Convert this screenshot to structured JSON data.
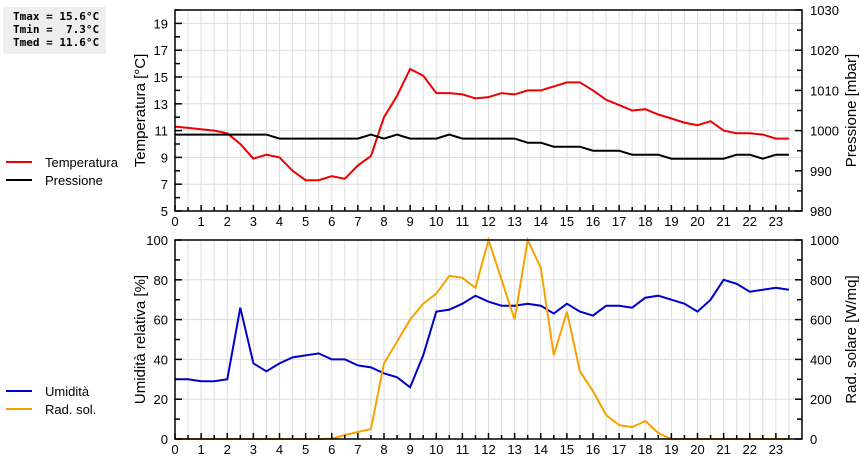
{
  "stats": {
    "tmax": "Tmax = 15.6°C",
    "tmin": "Tmin =  7.3°C",
    "tmed": "Tmed = 11.6°C"
  },
  "legend_top": [
    {
      "label": "Temperatura",
      "color": "#ee0000"
    },
    {
      "label": "Pressione",
      "color": "#000000"
    }
  ],
  "legend_bottom": [
    {
      "label": "Umidità",
      "color": "#0000cc"
    },
    {
      "label": "Rad. sol.",
      "color": "#f5a300"
    }
  ],
  "chart_data": [
    {
      "type": "line",
      "title": "",
      "xlabel": "",
      "ylabel": "Temperatura [°C]",
      "y2label": "Pressione [mbar]",
      "xlim": [
        0,
        24
      ],
      "ylim": [
        5,
        20
      ],
      "y2lim": [
        980,
        1030
      ],
      "x_ticks": [
        "0",
        "1",
        "2",
        "3",
        "4",
        "5",
        "6",
        "7",
        "8",
        "9",
        "10",
        "11",
        "12",
        "13",
        "14",
        "15",
        "16",
        "17",
        "18",
        "19",
        "20",
        "21",
        "22",
        "23"
      ],
      "y_ticks": [
        "5",
        "7",
        "9",
        "11",
        "13",
        "15",
        "17",
        "19"
      ],
      "y2_ticks": [
        "980",
        "990",
        "1000",
        "1010",
        "1020",
        "1030"
      ],
      "grid": true,
      "legend_position": "left",
      "x": [
        0,
        0.5,
        1,
        1.5,
        2,
        2.5,
        3,
        3.5,
        4,
        4.5,
        5,
        5.5,
        6,
        6.5,
        7,
        7.5,
        8,
        8.5,
        9,
        9.5,
        10,
        10.5,
        11,
        11.5,
        12,
        12.5,
        13,
        13.5,
        14,
        14.5,
        15,
        15.5,
        16,
        16.5,
        17,
        17.5,
        18,
        18.5,
        19,
        19.5,
        20,
        20.5,
        21,
        21.5,
        22,
        22.5,
        23,
        23.5
      ],
      "series": [
        {
          "name": "Temperatura",
          "axis": "left",
          "color": "#ee0000",
          "values": [
            11.3,
            11.2,
            11.1,
            11.0,
            10.8,
            10.0,
            8.9,
            9.2,
            9.0,
            8.0,
            7.3,
            7.3,
            7.6,
            7.4,
            8.4,
            9.1,
            12.0,
            13.6,
            15.6,
            15.1,
            13.8,
            13.8,
            13.7,
            13.4,
            13.5,
            13.8,
            13.7,
            14.0,
            14.0,
            14.3,
            14.6,
            14.6,
            14.0,
            13.3,
            12.9,
            12.5,
            12.6,
            12.2,
            11.9,
            11.6,
            11.4,
            11.7,
            11.0,
            10.8,
            10.8,
            10.7,
            10.4,
            10.4
          ]
        },
        {
          "name": "Pressione",
          "axis": "right",
          "color": "#000000",
          "values": [
            999,
            999,
            999,
            999,
            999,
            999,
            999,
            999,
            998,
            998,
            998,
            998,
            998,
            998,
            998,
            999,
            998,
            999,
            998,
            998,
            998,
            999,
            998,
            998,
            998,
            998,
            998,
            997,
            997,
            996,
            996,
            996,
            995,
            995,
            995,
            994,
            994,
            994,
            993,
            993,
            993,
            993,
            993,
            994,
            994,
            993,
            994,
            994
          ]
        }
      ]
    },
    {
      "type": "line",
      "title": "",
      "xlabel": "",
      "ylabel": "Umidità relativa [%]",
      "y2label": "Rad. solare [W/mq]",
      "xlim": [
        0,
        24
      ],
      "ylim": [
        0,
        100
      ],
      "y2lim": [
        0,
        1000
      ],
      "x_ticks": [
        "0",
        "1",
        "2",
        "3",
        "4",
        "5",
        "6",
        "7",
        "8",
        "9",
        "10",
        "11",
        "12",
        "13",
        "14",
        "15",
        "16",
        "17",
        "18",
        "19",
        "20",
        "21",
        "22",
        "23"
      ],
      "y_ticks": [
        "0",
        "20",
        "40",
        "60",
        "80",
        "100"
      ],
      "y2_ticks": [
        "0",
        "200",
        "400",
        "600",
        "800",
        "1000"
      ],
      "grid": true,
      "legend_position": "left",
      "x": [
        0,
        0.5,
        1,
        1.5,
        2,
        2.5,
        3,
        3.5,
        4,
        4.5,
        5,
        5.5,
        6,
        6.5,
        7,
        7.5,
        8,
        8.5,
        9,
        9.5,
        10,
        10.5,
        11,
        11.5,
        12,
        12.5,
        13,
        13.5,
        14,
        14.5,
        15,
        15.5,
        16,
        16.5,
        17,
        17.5,
        18,
        18.5,
        19,
        19.5,
        20,
        20.5,
        21,
        21.5,
        22,
        22.5,
        23,
        23.5
      ],
      "series": [
        {
          "name": "Umidità",
          "axis": "left",
          "color": "#0000cc",
          "values": [
            30,
            30,
            29,
            29,
            30,
            66,
            38,
            34,
            38,
            41,
            42,
            43,
            40,
            40,
            37,
            36,
            33,
            31,
            26,
            42,
            64,
            65,
            68,
            72,
            69,
            67,
            67,
            68,
            67,
            63,
            68,
            64,
            62,
            67,
            67,
            66,
            71,
            72,
            70,
            68,
            64,
            70,
            80,
            78,
            74,
            75,
            76,
            75
          ]
        },
        {
          "name": "Rad. sol.",
          "axis": "right",
          "color": "#f5a300",
          "values": [
            0,
            0,
            0,
            0,
            0,
            0,
            0,
            0,
            0,
            0,
            0,
            0,
            2,
            20,
            35,
            50,
            380,
            490,
            600,
            680,
            730,
            820,
            810,
            760,
            1000,
            800,
            600,
            1000,
            860,
            420,
            640,
            340,
            240,
            120,
            70,
            60,
            90,
            30,
            0,
            0,
            0,
            0,
            0,
            0,
            0,
            0,
            0,
            0
          ]
        }
      ]
    }
  ]
}
